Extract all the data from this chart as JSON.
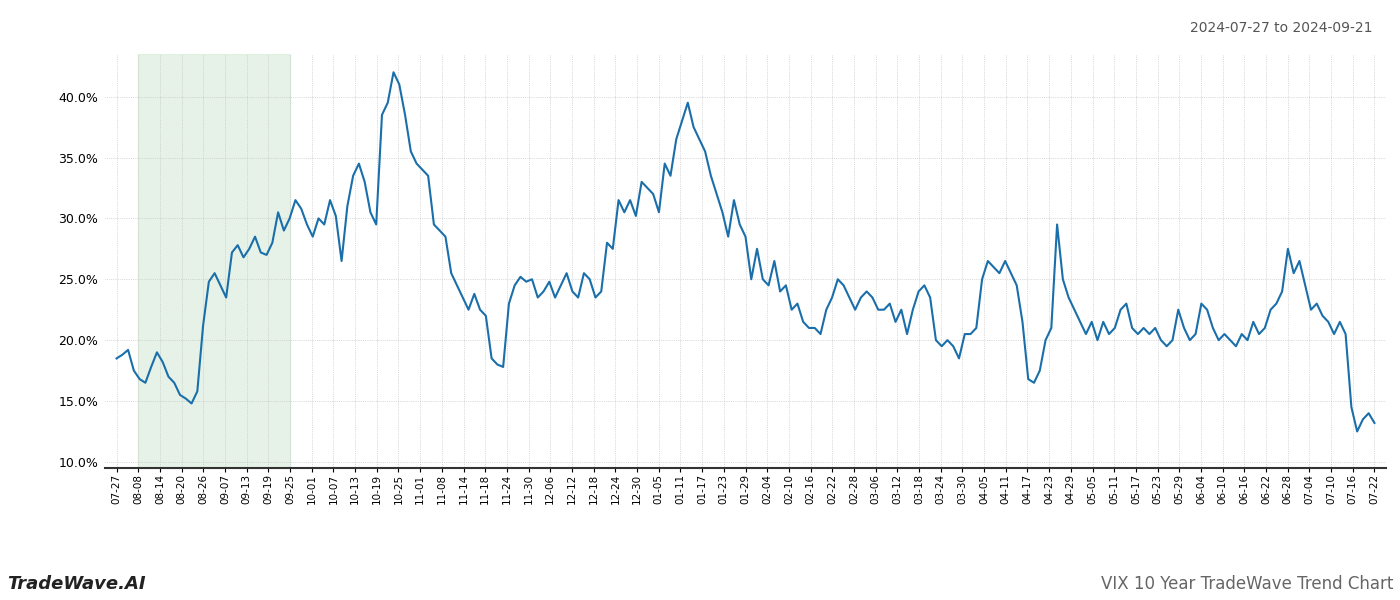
{
  "title_top_right": "2024-07-27 to 2024-09-21",
  "footer_left": "TradeWave.AI",
  "footer_right": "VIX 10 Year TradeWave Trend Chart",
  "line_color": "#1a6faa",
  "line_width": 1.5,
  "background_color": "#ffffff",
  "grid_color": "#bbbbbb",
  "shade_color": "#d6ead7",
  "shade_alpha": 0.6,
  "ylim": [
    9.5,
    43.5
  ],
  "yticks": [
    10.0,
    15.0,
    20.0,
    25.0,
    30.0,
    35.0,
    40.0
  ],
  "x_labels": [
    "07-27",
    "08-08",
    "08-14",
    "08-20",
    "08-26",
    "09-07",
    "09-13",
    "09-19",
    "09-25",
    "10-01",
    "10-07",
    "10-13",
    "10-19",
    "10-25",
    "11-01",
    "11-08",
    "11-14",
    "11-18",
    "11-24",
    "11-30",
    "12-06",
    "12-12",
    "12-18",
    "12-24",
    "12-30",
    "01-05",
    "01-11",
    "01-17",
    "01-23",
    "01-29",
    "02-04",
    "02-10",
    "02-16",
    "02-22",
    "02-28",
    "03-06",
    "03-12",
    "03-18",
    "03-24",
    "03-30",
    "04-05",
    "04-11",
    "04-17",
    "04-23",
    "04-29",
    "05-05",
    "05-11",
    "05-17",
    "05-23",
    "05-29",
    "06-04",
    "06-10",
    "06-16",
    "06-22",
    "06-28",
    "07-04",
    "07-10",
    "07-16",
    "07-22"
  ],
  "shade_start_label": "08-08",
  "shade_end_label": "09-25",
  "values": [
    18.5,
    18.8,
    19.2,
    17.5,
    16.8,
    16.5,
    17.8,
    19.0,
    18.2,
    17.0,
    16.5,
    15.5,
    15.2,
    14.8,
    15.8,
    21.2,
    24.8,
    25.5,
    24.5,
    23.5,
    27.2,
    27.8,
    26.8,
    27.5,
    28.5,
    27.2,
    27.0,
    28.0,
    30.5,
    29.0,
    30.0,
    31.5,
    30.8,
    29.5,
    28.5,
    30.0,
    29.5,
    31.5,
    30.2,
    26.5,
    31.0,
    33.5,
    34.5,
    33.0,
    30.5,
    29.5,
    38.5,
    39.5,
    42.0,
    41.0,
    38.5,
    35.5,
    34.5,
    34.0,
    33.5,
    29.5,
    29.0,
    28.5,
    25.5,
    24.5,
    23.5,
    22.5,
    23.8,
    22.5,
    22.0,
    18.5,
    18.0,
    17.8,
    23.0,
    24.5,
    25.2,
    24.8,
    25.0,
    23.5,
    24.0,
    24.8,
    23.5,
    24.5,
    25.5,
    24.0,
    23.5,
    25.5,
    25.0,
    23.5,
    24.0,
    28.0,
    27.5,
    31.5,
    30.5,
    31.5,
    30.2,
    33.0,
    32.5,
    32.0,
    30.5,
    34.5,
    33.5,
    36.5,
    38.0,
    39.5,
    37.5,
    36.5,
    35.5,
    33.5,
    32.0,
    30.5,
    28.5,
    31.5,
    29.5,
    28.5,
    25.0,
    27.5,
    25.0,
    24.5,
    26.5,
    24.0,
    24.5,
    22.5,
    23.0,
    21.5,
    21.0,
    21.0,
    20.5,
    22.5,
    23.5,
    25.0,
    24.5,
    23.5,
    22.5,
    23.5,
    24.0,
    23.5,
    22.5,
    22.5,
    23.0,
    21.5,
    22.5,
    20.5,
    22.5,
    24.0,
    24.5,
    23.5,
    20.0,
    19.5,
    20.0,
    19.5,
    18.5,
    20.5,
    20.5,
    21.0,
    25.0,
    26.5,
    26.0,
    25.5,
    26.5,
    25.5,
    24.5,
    21.5,
    16.8,
    16.5,
    17.5,
    20.0,
    21.0,
    29.5,
    25.0,
    23.5,
    22.5,
    21.5,
    20.5,
    21.5,
    20.0,
    21.5,
    20.5,
    21.0,
    22.5,
    23.0,
    21.0,
    20.5,
    21.0,
    20.5,
    21.0,
    20.0,
    19.5,
    20.0,
    22.5,
    21.0,
    20.0,
    20.5,
    23.0,
    22.5,
    21.0,
    20.0,
    20.5,
    20.0,
    19.5,
    20.5,
    20.0,
    21.5,
    20.5,
    21.0,
    22.5,
    23.0,
    24.0,
    27.5,
    25.5,
    26.5,
    24.5,
    22.5,
    23.0,
    22.0,
    21.5,
    20.5,
    21.5,
    20.5,
    14.5,
    12.5,
    13.5,
    14.0,
    13.2
  ]
}
